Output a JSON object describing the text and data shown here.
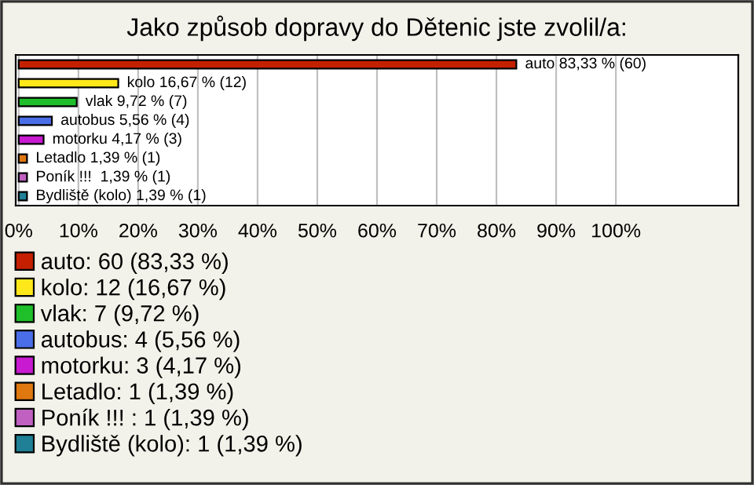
{
  "chart_data": {
    "type": "bar",
    "orientation": "horizontal",
    "title": "Jako způsob dopravy do Dětenic jste zvolil/a:",
    "categories": [
      null,
      null,
      null,
      null,
      null,
      null,
      null,
      null
    ],
    "series": [
      {
        "name": "auto: 60 (83,33 %)",
        "color": "#c42000",
        "values": [
          83.33,
          null,
          null,
          null,
          null,
          null,
          null,
          null
        ],
        "value_labels": [
          "auto 83,33 % (60)",
          null,
          null,
          null,
          null,
          null,
          null,
          null
        ]
      },
      {
        "name": "kolo: 12 (16,67 %)",
        "color": "#ffe81a",
        "values": [
          null,
          16.67,
          null,
          null,
          null,
          null,
          null,
          null
        ],
        "value_labels": [
          null,
          "kolo 16,67 % (12)",
          null,
          null,
          null,
          null,
          null,
          null
        ]
      },
      {
        "name": "vlak: 7 (9,72 %)",
        "color": "#1fbf2a",
        "values": [
          null,
          null,
          9.72,
          null,
          null,
          null,
          null,
          null
        ],
        "value_labels": [
          null,
          null,
          "vlak 9,72 % (7)",
          null,
          null,
          null,
          null,
          null
        ]
      },
      {
        "name": "autobus: 4 (5,56 %)",
        "color": "#4a6ee8",
        "values": [
          null,
          null,
          null,
          5.56,
          null,
          null,
          null,
          null
        ],
        "value_labels": [
          null,
          null,
          null,
          "autobus 5,56 % (4)",
          null,
          null,
          null,
          null
        ]
      },
      {
        "name": "motorku: 3 (4,17 %)",
        "color": "#c81ad0",
        "values": [
          null,
          null,
          null,
          null,
          4.17,
          null,
          null,
          null
        ],
        "value_labels": [
          null,
          null,
          null,
          null,
          "motorku 4,17 % (3)",
          null,
          null,
          null
        ]
      },
      {
        "name": "Letadlo: 1 (1,39 %)",
        "color": "#e07810",
        "values": [
          null,
          null,
          null,
          null,
          null,
          1.39,
          null,
          null
        ],
        "value_labels": [
          null,
          null,
          null,
          null,
          null,
          "Letadlo 1,39 % (1)",
          null,
          null
        ]
      },
      {
        "name": "Poník !!! : 1 (1,39 %)",
        "color": "#c060c0",
        "values": [
          null,
          null,
          null,
          null,
          null,
          null,
          1.39,
          null
        ],
        "value_labels": [
          null,
          null,
          null,
          null,
          null,
          null,
          "Poník !!!  1,39 % (1)",
          null
        ]
      },
      {
        "name": "Bydliště (kolo): 1 (1,39 %)",
        "color": "#1f8096",
        "values": [
          null,
          null,
          null,
          null,
          null,
          null,
          null,
          1.39
        ],
        "value_labels": [
          null,
          null,
          null,
          null,
          null,
          null,
          null,
          "Bydliště (kolo) 1,39 % (1)"
        ]
      }
    ],
    "xlim": [
      -0.5,
      120.5
    ],
    "xticks": [
      {
        "value": 0,
        "label": "0%"
      },
      {
        "value": 10,
        "label": "10%"
      },
      {
        "value": 20,
        "label": "20%"
      },
      {
        "value": 30,
        "label": "30%"
      },
      {
        "value": 40,
        "label": "40%"
      },
      {
        "value": 50,
        "label": "50%"
      },
      {
        "value": 60,
        "label": "60%"
      },
      {
        "value": 70,
        "label": "70%"
      },
      {
        "value": 80,
        "label": "80%"
      },
      {
        "value": 90,
        "label": "90%"
      },
      {
        "value": 100,
        "label": "100%"
      }
    ],
    "grid": "x",
    "legend": "bottom left",
    "tick_labels": "x"
  }
}
